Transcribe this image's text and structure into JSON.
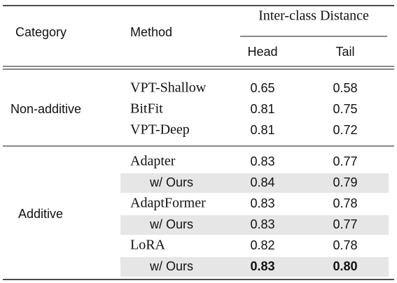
{
  "header": {
    "category": "Category",
    "method": "Method",
    "group": "Inter-class Distance",
    "columns": [
      "Head",
      "Tail"
    ]
  },
  "groups": [
    {
      "category": "Non-additive",
      "rows": [
        {
          "method": "VPT-Shallow",
          "values": [
            "0.65",
            "0.58"
          ]
        },
        {
          "method": "BitFit",
          "values": [
            "0.81",
            "0.75"
          ]
        },
        {
          "method": "VPT-Deep",
          "values": [
            "0.81",
            "0.72"
          ]
        }
      ]
    },
    {
      "category": "Additive",
      "rows": [
        {
          "method": "Adapter",
          "values": [
            "0.83",
            "0.77"
          ]
        },
        {
          "method": "w/ Ours",
          "values": [
            "0.84",
            "0.79"
          ],
          "highlighted": true
        },
        {
          "method": "AdaptFormer",
          "values": [
            "0.83",
            "0.78"
          ]
        },
        {
          "method": "w/ Ours",
          "values": [
            "0.83",
            "0.77"
          ],
          "highlighted": true
        },
        {
          "method": "LoRA",
          "values": [
            "0.82",
            "0.78"
          ]
        },
        {
          "method": "w/ Ours",
          "values": [
            "0.83",
            "0.80"
          ],
          "highlighted": true,
          "bold": true
        }
      ]
    }
  ]
}
